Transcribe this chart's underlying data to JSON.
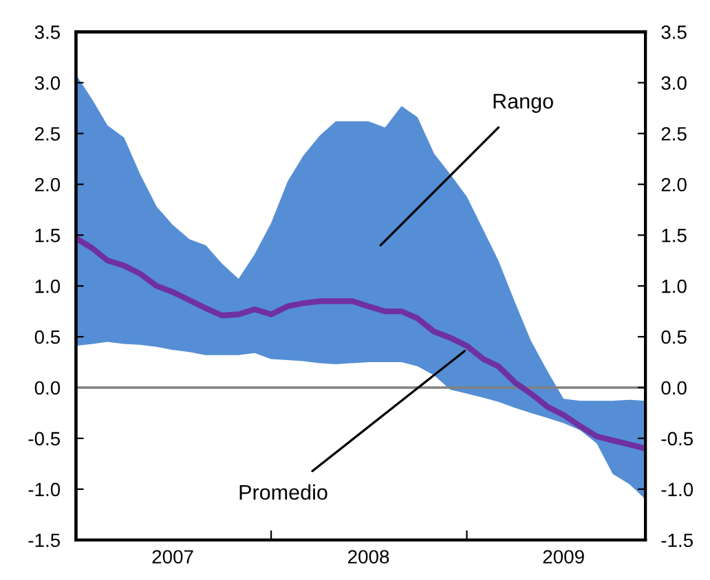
{
  "chart_data": {
    "type": "line",
    "x": [
      "2007-01",
      "2007-02",
      "2007-03",
      "2007-04",
      "2007-05",
      "2007-06",
      "2007-07",
      "2007-08",
      "2007-09",
      "2007-10",
      "2007-11",
      "2007-12",
      "2008-01",
      "2008-02",
      "2008-03",
      "2008-04",
      "2008-05",
      "2008-06",
      "2008-07",
      "2008-08",
      "2008-09",
      "2008-10",
      "2008-11",
      "2008-12",
      "2009-01",
      "2009-02",
      "2009-03",
      "2009-04",
      "2009-05",
      "2009-06",
      "2009-07",
      "2009-08",
      "2009-09",
      "2009-10",
      "2009-11",
      "2009-12"
    ],
    "series": [
      {
        "color": "#7030a0",
        "values": [
          1.47,
          1.37,
          1.25,
          1.2,
          1.12,
          1.0,
          0.94,
          0.86,
          0.78,
          0.71,
          0.72,
          0.77,
          0.72,
          0.8,
          0.83,
          0.85,
          0.85,
          0.85,
          0.8,
          0.75,
          0.75,
          0.68,
          0.55,
          0.49,
          0.41,
          0.28,
          0.21,
          0.05,
          -0.06,
          -0.19,
          -0.27,
          -0.38,
          -0.48,
          -0.52,
          -0.56,
          -0.6
        ],
        "upper": [
          3.08,
          2.83,
          2.58,
          2.46,
          2.1,
          1.78,
          1.6,
          1.46,
          1.4,
          1.22,
          1.07,
          1.31,
          1.62,
          2.03,
          2.28,
          2.48,
          2.62,
          2.62,
          2.62,
          2.56,
          2.77,
          2.66,
          2.3,
          2.1,
          1.88,
          1.55,
          1.25,
          0.84,
          0.46,
          0.16,
          -0.11,
          -0.13,
          -0.13,
          -0.13,
          -0.12,
          -0.13
        ],
        "lower": [
          0.41,
          0.43,
          0.45,
          0.43,
          0.42,
          0.4,
          0.37,
          0.35,
          0.32,
          0.32,
          0.32,
          0.34,
          0.28,
          0.27,
          0.26,
          0.24,
          0.23,
          0.24,
          0.25,
          0.25,
          0.25,
          0.21,
          0.12,
          -0.02,
          -0.06,
          -0.1,
          -0.14,
          -0.2,
          -0.25,
          -0.3,
          -0.35,
          -0.42,
          -0.55,
          -0.85,
          -0.95,
          -1.1
        ]
      }
    ],
    "xlim": [
      "2007-01",
      "2009-12"
    ],
    "xticks": [
      {
        "value": "2007-01",
        "label": null
      },
      {
        "value": "2007-07",
        "label": "2007"
      },
      {
        "value": "2008-01",
        "label": null
      },
      {
        "value": "2008-07",
        "label": "2008"
      },
      {
        "value": "2009-01",
        "label": null
      },
      {
        "value": "2009-07",
        "label": "2009"
      }
    ],
    "ylim": [
      -1.5,
      3.5
    ],
    "yticks": [
      {
        "value": -1.5,
        "label": "-1.5"
      },
      {
        "value": -1.0,
        "label": "-1.0"
      },
      {
        "value": -0.5,
        "label": "-0.5"
      },
      {
        "value": 0.0,
        "label": "0.0"
      },
      {
        "value": 0.5,
        "label": "0.5"
      },
      {
        "value": 1.0,
        "label": "1.0"
      },
      {
        "value": 1.5,
        "label": "1.5"
      },
      {
        "value": 2.0,
        "label": "2.0"
      },
      {
        "value": 2.5,
        "label": "2.5"
      },
      {
        "value": 3.0,
        "label": "3.0"
      },
      {
        "value": 3.5,
        "label": "3.5"
      }
    ],
    "y2lim": [
      -1.5,
      3.5
    ],
    "y2ticks": [
      {
        "value": -1.5,
        "label": "-1.5"
      },
      {
        "value": -1.0,
        "label": "-1.0"
      },
      {
        "value": -0.5,
        "label": "-0.5"
      },
      {
        "value": 0.0,
        "label": "0.0"
      },
      {
        "value": 0.5,
        "label": "0.5"
      },
      {
        "value": 1.0,
        "label": "1.0"
      },
      {
        "value": 1.5,
        "label": "1.5"
      },
      {
        "value": 2.0,
        "label": "2.0"
      },
      {
        "value": 2.5,
        "label": "2.5"
      },
      {
        "value": 3.0,
        "label": "3.0"
      },
      {
        "value": 3.5,
        "label": "3.5"
      }
    ],
    "ref_lines": [
      {
        "axis": "y",
        "value": 0,
        "color": "#808080"
      }
    ],
    "annotations": [
      "Rango",
      {
        "text": "Promedio",
        "x": "2008-12-28",
        "y": 0.36
      }
    ],
    "grid": false,
    "legend": false,
    "marker": "none",
    "line_style": "solid"
  }
}
